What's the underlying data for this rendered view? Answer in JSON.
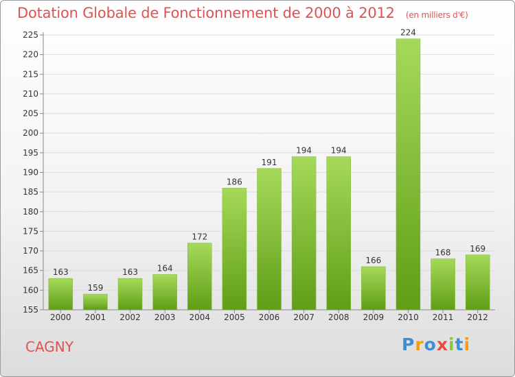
{
  "chart_data": {
    "type": "bar",
    "title": "Dotation Globale de Fonctionnement de 2000 à 2012",
    "unit_note": "(en milliers d'€)",
    "categories": [
      "2000",
      "2001",
      "2002",
      "2003",
      "2004",
      "2005",
      "2006",
      "2007",
      "2008",
      "2009",
      "2010",
      "2011",
      "2012"
    ],
    "values": [
      163,
      159,
      163,
      164,
      172,
      186,
      191,
      194,
      194,
      166,
      224,
      168,
      169
    ],
    "ylim": [
      155,
      225
    ],
    "yticks": [
      155,
      160,
      165,
      170,
      175,
      180,
      185,
      190,
      195,
      200,
      205,
      210,
      215,
      220,
      225
    ],
    "grid": true,
    "bar_color": "#8cc63f"
  },
  "location_label": "CAGNY",
  "logo": {
    "letters": [
      "P",
      "r",
      "o",
      "x",
      "i",
      "t",
      "i"
    ],
    "colors": [
      "#3a8fd8",
      "#f39c12",
      "#3a8fd8",
      "#e74c3c",
      "#8cc63f",
      "#3a8fd8",
      "#f39c12"
    ]
  }
}
